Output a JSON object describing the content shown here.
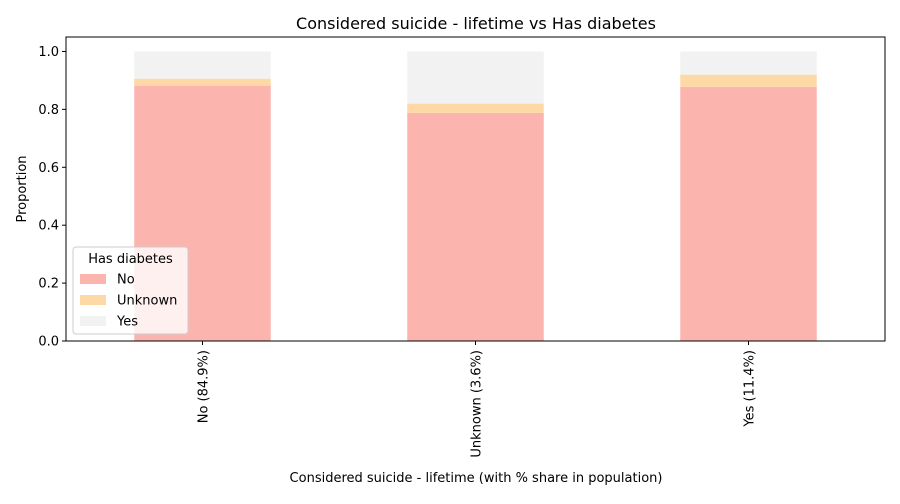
{
  "chart_data": {
    "type": "bar",
    "stacked": true,
    "title": "Considered suicide - lifetime vs Has diabetes",
    "xlabel": "Considered suicide - lifetime (with % share in population)",
    "ylabel": "Proportion",
    "ylim": [
      0,
      1.05
    ],
    "yticks": [
      "0.0",
      "0.2",
      "0.4",
      "0.6",
      "0.8",
      "1.0"
    ],
    "categories": [
      "No (84.9%)",
      "Unknown (3.6%)",
      "Yes (11.4%)"
    ],
    "series": [
      {
        "name": "No",
        "color": "#fbb4ae",
        "values": [
          0.882,
          0.788,
          0.878
        ]
      },
      {
        "name": "Unknown",
        "color": "#fed9a6",
        "values": [
          0.024,
          0.032,
          0.042
        ]
      },
      {
        "name": "Yes",
        "color": "#f2f2f2",
        "values": [
          0.094,
          0.18,
          0.08
        ]
      }
    ],
    "legend": {
      "title": "Has diabetes",
      "placement": "lower-left"
    },
    "grid": false
  }
}
